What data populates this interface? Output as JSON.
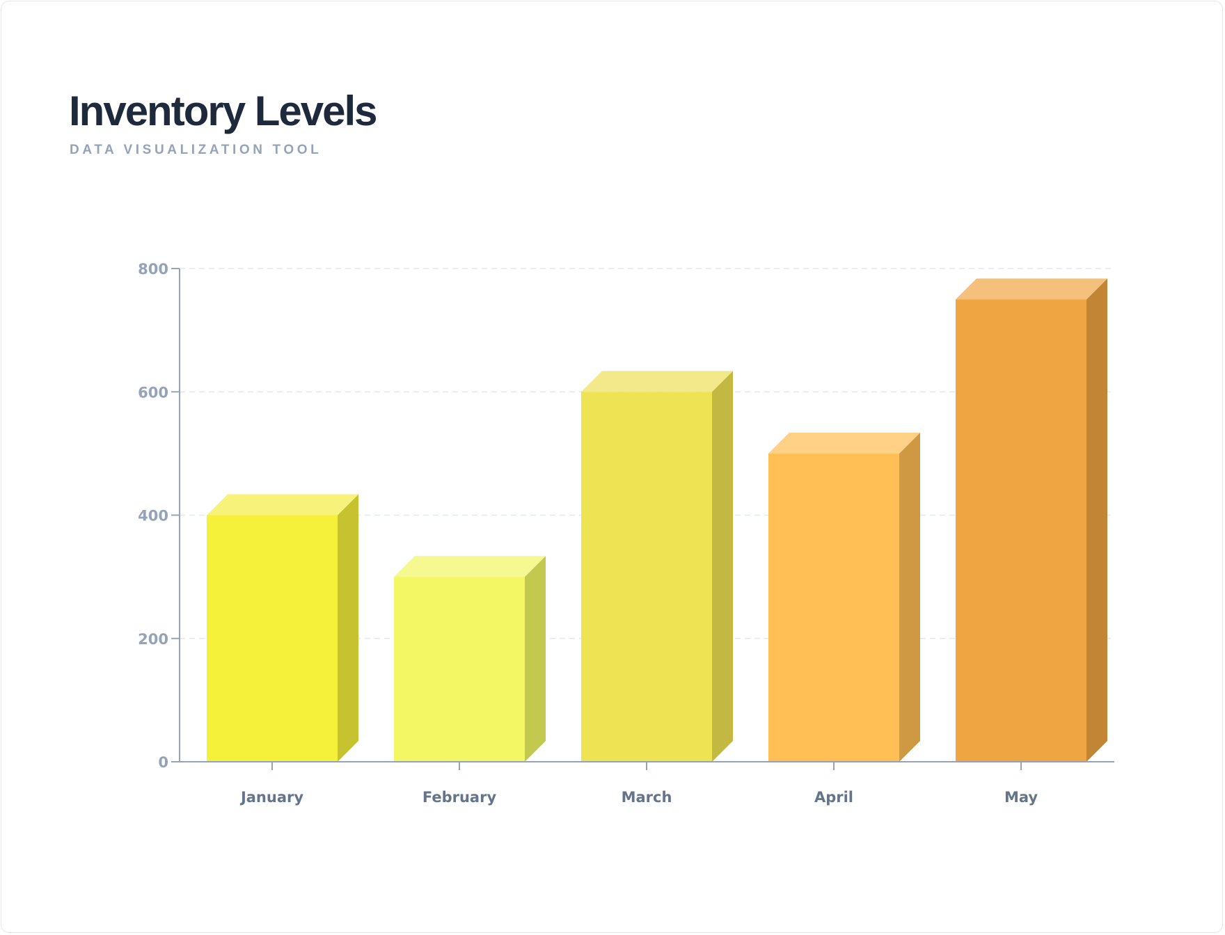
{
  "header": {
    "title": "Inventory Levels",
    "subtitle": "DATA VISUALIZATION TOOL"
  },
  "colors": {
    "axis": "#94a3b8",
    "grid": "#e2e8f0",
    "title": "#1e293b",
    "subtitle": "#94a3b8",
    "category_label": "#64748b",
    "bars": [
      {
        "front": "#f5f03a",
        "top": "#f7f27a",
        "side": "#c7c22f"
      },
      {
        "front": "#f2f763",
        "top": "#f5f990",
        "side": "#c3c84f"
      },
      {
        "front": "#eee352",
        "top": "#f3e98a",
        "side": "#c2b842"
      },
      {
        "front": "#ffbf55",
        "top": "#ffd186",
        "side": "#cf9842"
      },
      {
        "front": "#efa642",
        "top": "#f4c07c",
        "side": "#c28535"
      }
    ]
  },
  "chart_data": {
    "type": "bar",
    "style": "3d",
    "title": "Inventory Levels",
    "subtitle": "DATA VISUALIZATION TOOL",
    "categories": [
      "January",
      "February",
      "March",
      "April",
      "May"
    ],
    "values": [
      400,
      300,
      600,
      500,
      750
    ],
    "xlabel": "",
    "ylabel": "",
    "ylim": [
      0,
      800
    ],
    "yticks": [
      0,
      200,
      400,
      600,
      800
    ],
    "grid": true,
    "grid_style": "dashed-horizontal",
    "legend": null
  }
}
